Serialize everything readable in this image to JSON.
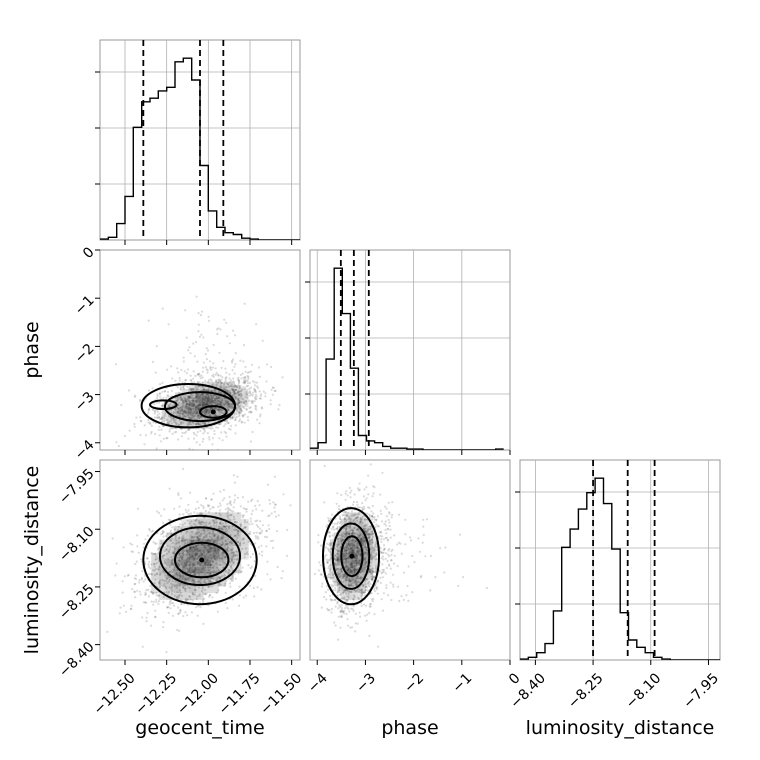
{
  "chart_data": {
    "type": "corner",
    "parameters": [
      {
        "name": "geocent_time",
        "label": "geocent_time",
        "range": [
          -12.65,
          -11.45
        ],
        "ticks": [
          -12.5,
          -12.25,
          -12.0,
          -11.75,
          -11.5
        ],
        "tick_labels": [
          "−12.50",
          "−12.25",
          "−12.00",
          "−11.75",
          "−11.50"
        ]
      },
      {
        "name": "phase",
        "label": "phase",
        "range": [
          -4.15,
          0.0
        ],
        "ticks": [
          -4,
          -3,
          -2,
          -1,
          0
        ],
        "tick_labels": [
          "−4",
          "−3",
          "−2",
          "−1",
          "0"
        ]
      },
      {
        "name": "luminosity_distance",
        "label": "luminosity_distance",
        "range": [
          -8.44,
          -7.92
        ],
        "ticks": [
          -8.4,
          -8.25,
          -8.1,
          -7.95
        ],
        "tick_labels": [
          "−8.40",
          "−8.25",
          "−8.10",
          "−7.95"
        ]
      }
    ],
    "histograms": [
      {
        "param": "geocent_time",
        "bin_start": -12.65,
        "bin_width": 0.05,
        "values": [
          0.005,
          0.015,
          0.09,
          0.24,
          0.62,
          0.76,
          0.78,
          0.82,
          0.84,
          0.98,
          1.0,
          0.88,
          0.41,
          0.16,
          0.07,
          0.04,
          0.03,
          0.01,
          0.005,
          0.0,
          0.0,
          0.0,
          0.0,
          0.0
        ],
        "quantiles": [
          -12.39,
          -12.05,
          -11.91
        ]
      },
      {
        "param": "phase",
        "bin_start": -4.15,
        "bin_width": 0.1675,
        "values": [
          0.01,
          0.04,
          0.5,
          1.0,
          0.75,
          0.45,
          0.08,
          0.05,
          0.04,
          0.02,
          0.01,
          0.01,
          0.005,
          0.005,
          0.0,
          0.0,
          0.0,
          0.0,
          0.0,
          0.0,
          0.0,
          0.0,
          0.0,
          0.005
        ],
        "quantiles": [
          -3.51,
          -3.24,
          -2.93
        ]
      },
      {
        "param": "luminosity_distance",
        "bin_start": -8.44,
        "bin_width": 0.0217,
        "values": [
          0.005,
          0.015,
          0.04,
          0.09,
          0.27,
          0.62,
          0.72,
          0.83,
          0.92,
          1.0,
          0.86,
          0.61,
          0.26,
          0.11,
          0.07,
          0.04,
          0.015,
          0.005,
          0.0,
          0.0,
          0.0,
          0.0,
          0.0,
          0.0
        ],
        "quantiles": [
          -8.25,
          -8.16,
          -8.09
        ]
      }
    ],
    "pairs": [
      {
        "x": "geocent_time",
        "y": "phase",
        "mean": [
          -12.02,
          -3.22
        ],
        "sd": [
          0.16,
          0.3
        ],
        "rho": 0.35,
        "contours": [
          {
            "cx": -12.12,
            "cy": -3.23,
            "rx": 0.28,
            "ry": 0.45
          },
          {
            "cx": -12.05,
            "cy": -3.25,
            "rx": 0.21,
            "ry": 0.3
          },
          {
            "cx": -12.27,
            "cy": -3.21,
            "rx": 0.08,
            "ry": 0.09
          },
          {
            "cx": -11.97,
            "cy": -3.36,
            "rx": 0.08,
            "ry": 0.12
          }
        ]
      },
      {
        "x": "geocent_time",
        "y": "luminosity_distance",
        "mean": [
          -12.05,
          -8.17
        ],
        "sd": [
          0.18,
          0.07
        ],
        "rho": 0.4,
        "contours": [
          {
            "cx": -12.05,
            "cy": -8.18,
            "rx": 0.34,
            "ry": 0.115
          },
          {
            "cx": -12.05,
            "cy": -8.17,
            "rx": 0.24,
            "ry": 0.075
          },
          {
            "cx": -12.04,
            "cy": -8.18,
            "rx": 0.16,
            "ry": 0.045
          }
        ]
      },
      {
        "x": "phase",
        "y": "luminosity_distance",
        "mean": [
          -3.25,
          -8.17
        ],
        "sd": [
          0.3,
          0.07
        ],
        "rho": 0.1,
        "contours": [
          {
            "cx": -3.3,
            "cy": -8.17,
            "rx": 0.58,
            "ry": 0.125
          },
          {
            "cx": -3.3,
            "cy": -8.17,
            "rx": 0.38,
            "ry": 0.085
          },
          {
            "cx": -3.28,
            "cy": -8.17,
            "rx": 0.22,
            "ry": 0.052
          }
        ]
      }
    ],
    "grid": true,
    "colors": {
      "line": "#000000",
      "scatter": "#555555",
      "grid": "#b0b0b0",
      "frame": "#999999"
    }
  }
}
